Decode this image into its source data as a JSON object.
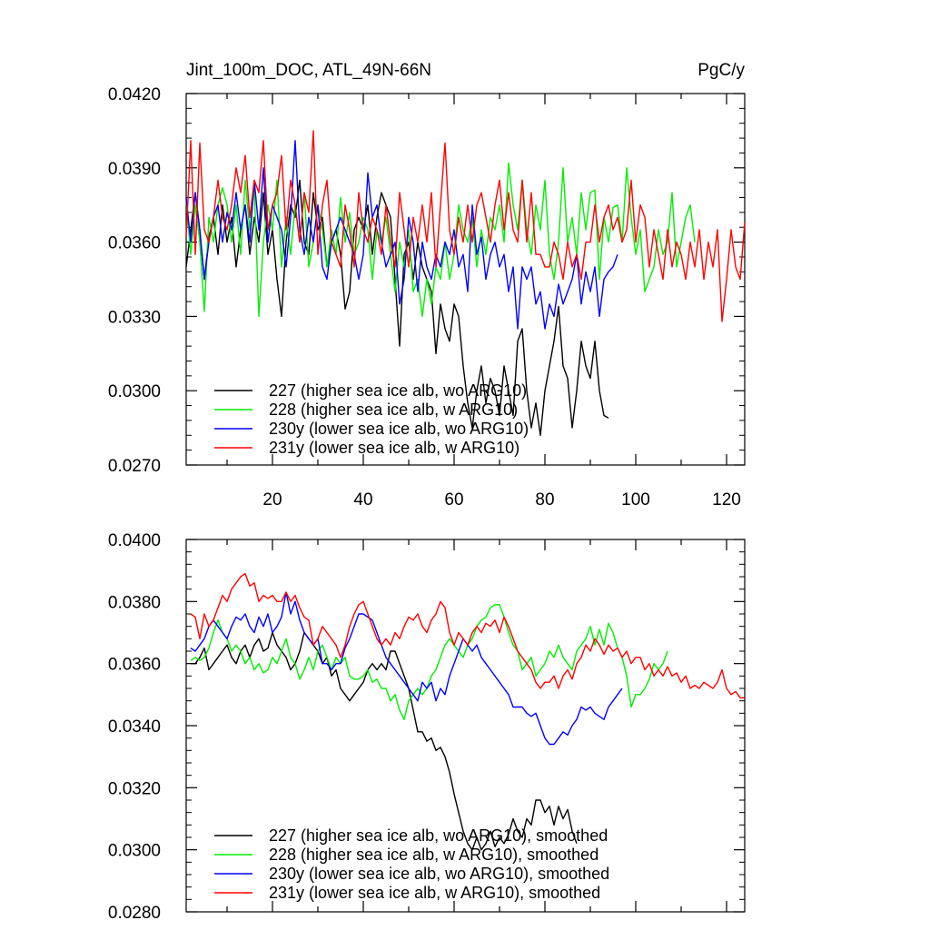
{
  "colors": {
    "s227": "#000000",
    "s228": "#00ee00",
    "s230y": "#0000ff",
    "s231y": "#ff0000"
  },
  "chart_data": [
    {
      "type": "line",
      "title": "Jint_100m_DOC, ATL_49N-66N",
      "units": "PgC/y",
      "xlabel": "",
      "ylabel": "",
      "xlim": [
        1,
        124
      ],
      "ylim": [
        0.027,
        0.042
      ],
      "y_ticks": [
        "0.0270",
        "0.0300",
        "0.0330",
        "0.0360",
        "0.0390",
        "0.0420"
      ],
      "x_ticks": [
        "20",
        "40",
        "60",
        "80",
        "100",
        "120"
      ],
      "legend_position": "bottom-left",
      "series": [
        {
          "name": "227 (higher sea ice alb, wo ARG10)",
          "color_key": "s227",
          "x_start": 1,
          "values": [
            0.035,
            0.0365,
            0.038,
            0.0365,
            0.0345,
            0.0362,
            0.037,
            0.0355,
            0.0375,
            0.036,
            0.037,
            0.035,
            0.0365,
            0.0375,
            0.0355,
            0.037,
            0.036,
            0.038,
            0.0355,
            0.0365,
            0.0345,
            0.033,
            0.036,
            0.0375,
            0.037,
            0.0385,
            0.036,
            0.0355,
            0.038,
            0.0365,
            0.037,
            0.035,
            0.036,
            0.0365,
            0.0355,
            0.0333,
            0.034,
            0.0365,
            0.037,
            0.0365,
            0.0375,
            0.0355,
            0.037,
            0.038,
            0.0375,
            0.037,
            0.0345,
            0.0318,
            0.0355,
            0.036,
            0.0345,
            0.036,
            0.035,
            0.0345,
            0.034,
            0.0315,
            0.0335,
            0.0325,
            0.032,
            0.0335,
            0.033,
            0.031,
            0.0295,
            0.0285,
            0.03,
            0.031,
            0.0295,
            0.0305,
            0.03,
            0.029,
            0.031,
            0.03,
            0.029,
            0.032,
            0.0325,
            0.03,
            0.0285,
            0.0295,
            0.0282,
            0.03,
            0.031,
            0.032,
            0.0334,
            0.031,
            0.0305,
            0.0285,
            0.03,
            0.032,
            0.031,
            0.0305,
            0.032,
            0.03,
            0.029,
            0.0289
          ]
        },
        {
          "name": "228 (higher sea ice alb, w ARG10)",
          "color_key": "s228",
          "x_start": 1,
          "values": [
            0.0377,
            0.0355,
            0.0375,
            0.036,
            0.0332,
            0.037,
            0.036,
            0.0375,
            0.0382,
            0.0375,
            0.036,
            0.0375,
            0.0355,
            0.0385,
            0.0365,
            0.0382,
            0.033,
            0.036,
            0.0375,
            0.0365,
            0.0385,
            0.035,
            0.037,
            0.0355,
            0.0375,
            0.036,
            0.038,
            0.035,
            0.036,
            0.0375,
            0.0365,
            0.035,
            0.0365,
            0.0355,
            0.0378,
            0.036,
            0.0372,
            0.0355,
            0.036,
            0.037,
            0.0365,
            0.0345,
            0.0365,
            0.036,
            0.037,
            0.0355,
            0.034,
            0.036,
            0.035,
            0.0365,
            0.034,
            0.0345,
            0.033,
            0.0345,
            0.0335,
            0.035,
            0.0345,
            0.036,
            0.0345,
            0.0355,
            0.0375,
            0.0365,
            0.036,
            0.037,
            0.035,
            0.0365,
            0.0355,
            0.037,
            0.0365,
            0.0375,
            0.036,
            0.0392,
            0.0375,
            0.0365,
            0.0385,
            0.0365,
            0.0355,
            0.0375,
            0.0365,
            0.0385,
            0.0355,
            0.0345,
            0.036,
            0.039,
            0.036,
            0.037,
            0.0355,
            0.038,
            0.0365,
            0.038,
            0.0381,
            0.0345,
            0.037,
            0.036,
            0.0374,
            0.0375,
            0.036,
            0.039,
            0.037,
            0.0355,
            0.0365,
            0.034,
            0.0345,
            0.035,
            0.0365,
            0.0355,
            0.036,
            0.038,
            0.035,
            0.036,
            0.037,
            0.0375,
            0.036
          ]
        },
        {
          "name": "230y (lower sea ice alb, wo ARG10)",
          "color_key": "s230y",
          "x_start": 1,
          "values": [
            0.0378,
            0.036,
            0.038,
            0.0365,
            0.0345,
            0.036,
            0.037,
            0.0375,
            0.036,
            0.0372,
            0.0365,
            0.038,
            0.0365,
            0.0375,
            0.036,
            0.0385,
            0.0365,
            0.039,
            0.036,
            0.0375,
            0.037,
            0.0365,
            0.035,
            0.037,
            0.0401,
            0.0365,
            0.0355,
            0.037,
            0.036,
            0.0375,
            0.035,
            0.0345,
            0.036,
            0.0365,
            0.037,
            0.0365,
            0.036,
            0.0355,
            0.0345,
            0.0355,
            0.0388,
            0.037,
            0.0375,
            0.036,
            0.035,
            0.0355,
            0.036,
            0.0335,
            0.0345,
            0.037,
            0.036,
            0.034,
            0.036,
            0.035,
            0.0345,
            0.0355,
            0.035,
            0.036,
            0.0355,
            0.0365,
            0.035,
            0.0355,
            0.034,
            0.0375,
            0.0355,
            0.0362,
            0.0345,
            0.0355,
            0.036,
            0.035,
            0.0355,
            0.034,
            0.035,
            0.0325,
            0.035,
            0.0345,
            0.035,
            0.0335,
            0.034,
            0.0325,
            0.0335,
            0.033,
            0.0343,
            0.0335,
            0.034,
            0.0345,
            0.0355,
            0.0335,
            0.0348,
            0.034,
            0.035,
            0.033,
            0.0345,
            0.0348,
            0.035,
            0.0355
          ]
        },
        {
          "name": "231y (lower sea ice alb, w ARG10)",
          "color_key": "s231y",
          "x_start": 1,
          "values": [
            0.0362,
            0.0401,
            0.0355,
            0.04,
            0.0365,
            0.036,
            0.037,
            0.0385,
            0.037,
            0.0365,
            0.0375,
            0.039,
            0.038,
            0.0395,
            0.037,
            0.0385,
            0.038,
            0.0401,
            0.0365,
            0.0375,
            0.038,
            0.0395,
            0.0365,
            0.0385,
            0.0375,
            0.036,
            0.038,
            0.0372,
            0.0405,
            0.0355,
            0.0375,
            0.0385,
            0.036,
            0.0355,
            0.035,
            0.0375,
            0.0365,
            0.035,
            0.038,
            0.0365,
            0.036,
            0.037,
            0.0365,
            0.0355,
            0.0375,
            0.036,
            0.035,
            0.038,
            0.0365,
            0.035,
            0.037,
            0.036,
            0.0375,
            0.036,
            0.038,
            0.035,
            0.0375,
            0.04,
            0.0365,
            0.0355,
            0.037,
            0.036,
            0.0375,
            0.036,
            0.0375,
            0.038,
            0.037,
            0.036,
            0.0375,
            0.0385,
            0.0365,
            0.038,
            0.0365,
            0.036,
            0.0385,
            0.036,
            0.038,
            0.0355,
            0.0355,
            0.035,
            0.035,
            0.036,
            0.0355,
            0.0345,
            0.036,
            0.035,
            0.0355,
            0.0345,
            0.036,
            0.036,
            0.0375,
            0.036,
            0.037,
            0.0375,
            0.0365,
            0.037,
            0.036,
            0.0365,
            0.0385,
            0.036,
            0.0375,
            0.037,
            0.035,
            0.0365,
            0.0355,
            0.0345,
            0.0365,
            0.035,
            0.036,
            0.0355,
            0.0345,
            0.036,
            0.035,
            0.0365,
            0.0345,
            0.036,
            0.035,
            0.0365,
            0.0328,
            0.0345,
            0.0365,
            0.035,
            0.0345,
            0.0368
          ]
        }
      ]
    },
    {
      "type": "line",
      "title": "",
      "xlabel": "",
      "ylabel": "",
      "xlim": [
        1,
        124
      ],
      "ylim": [
        0.028,
        0.04
      ],
      "y_ticks": [
        "0.0280",
        "0.0300",
        "0.0320",
        "0.0340",
        "0.0360",
        "0.0380",
        "0.0400"
      ],
      "legend_position": "bottom-left",
      "series": [
        {
          "name": "227 (higher sea ice alb, wo ARG10), smoothed",
          "color_key": "s227",
          "x_start": 2,
          "values": [
            0.036,
            0.036,
            0.0362,
            0.0365,
            0.0358,
            0.036,
            0.0362,
            0.0364,
            0.0366,
            0.0362,
            0.036,
            0.0364,
            0.0366,
            0.0362,
            0.0366,
            0.0368,
            0.0364,
            0.0365,
            0.037,
            0.0366,
            0.0364,
            0.0362,
            0.0358,
            0.036,
            0.0364,
            0.037,
            0.0368,
            0.0366,
            0.0364,
            0.036,
            0.0362,
            0.0356,
            0.0358,
            0.0352,
            0.035,
            0.0348,
            0.035,
            0.0352,
            0.0354,
            0.0358,
            0.036,
            0.0358,
            0.036,
            0.0358,
            0.0364,
            0.0364,
            0.036,
            0.0356,
            0.0352,
            0.0345,
            0.0338,
            0.0338,
            0.0335,
            0.0336,
            0.0332,
            0.0333,
            0.033,
            0.0325,
            0.0318,
            0.0312,
            0.0306,
            0.0302,
            0.03,
            0.0304,
            0.03,
            0.0302,
            0.0306,
            0.0301,
            0.0304,
            0.0302,
            0.0305,
            0.031,
            0.0306,
            0.0304,
            0.031,
            0.0308,
            0.0316,
            0.0316,
            0.0312,
            0.0314,
            0.0308,
            0.0314,
            0.031,
            0.0313,
            0.0306,
            0.0302
          ]
        },
        {
          "name": "228 (higher sea ice alb, w ARG10), smoothed",
          "color_key": "s228",
          "x_start": 2,
          "values": [
            0.0361,
            0.0362,
            0.0361,
            0.0362,
            0.0365,
            0.037,
            0.0374,
            0.037,
            0.0368,
            0.0364,
            0.0366,
            0.0364,
            0.036,
            0.0362,
            0.0358,
            0.036,
            0.0357,
            0.0358,
            0.0362,
            0.036,
            0.0364,
            0.0368,
            0.0362,
            0.036,
            0.0355,
            0.0358,
            0.0362,
            0.0358,
            0.0364,
            0.0366,
            0.0362,
            0.0358,
            0.0362,
            0.036,
            0.0362,
            0.0356,
            0.0355,
            0.0355,
            0.0356,
            0.0358,
            0.0354,
            0.0355,
            0.0352,
            0.0352,
            0.0348,
            0.035,
            0.0345,
            0.0342,
            0.0348,
            0.035,
            0.0352,
            0.035,
            0.0352,
            0.0356,
            0.0358,
            0.0362,
            0.0366,
            0.0368,
            0.0366,
            0.0364,
            0.0362,
            0.0366,
            0.0368,
            0.0372,
            0.0374,
            0.0375,
            0.0378,
            0.0379,
            0.0379,
            0.0375,
            0.037,
            0.0366,
            0.0364,
            0.0358,
            0.036,
            0.0362,
            0.0356,
            0.0358,
            0.036,
            0.0364,
            0.0362,
            0.0366,
            0.0362,
            0.036,
            0.0358,
            0.0364,
            0.0366,
            0.0368,
            0.0372,
            0.0366,
            0.0371,
            0.0366,
            0.0373,
            0.037,
            0.0365,
            0.0362,
            0.0356,
            0.0346,
            0.035,
            0.035,
            0.0352,
            0.0355,
            0.036,
            0.0358,
            0.036,
            0.0364
          ]
        },
        {
          "name": "230y (lower sea ice alb, wo ARG10), smoothed",
          "color_key": "s230y",
          "x_start": 2,
          "values": [
            0.0365,
            0.0364,
            0.0366,
            0.0368,
            0.0372,
            0.0374,
            0.0372,
            0.037,
            0.0368,
            0.0372,
            0.0375,
            0.0374,
            0.0376,
            0.0372,
            0.037,
            0.0375,
            0.0372,
            0.0376,
            0.037,
            0.0372,
            0.0375,
            0.0383,
            0.0376,
            0.038,
            0.0374,
            0.037,
            0.0368,
            0.0366,
            0.0368,
            0.036,
            0.036,
            0.0358,
            0.036,
            0.036,
            0.0365,
            0.0368,
            0.0372,
            0.0376,
            0.0376,
            0.0375,
            0.0374,
            0.037,
            0.0366,
            0.0362,
            0.036,
            0.0358,
            0.0356,
            0.0354,
            0.0352,
            0.035,
            0.0348,
            0.0354,
            0.0352,
            0.0354,
            0.0348,
            0.0352,
            0.035,
            0.0356,
            0.036,
            0.0364,
            0.0368,
            0.0366,
            0.0364,
            0.0366,
            0.0362,
            0.036,
            0.0358,
            0.0356,
            0.0354,
            0.0352,
            0.035,
            0.0346,
            0.0346,
            0.0346,
            0.0344,
            0.0343,
            0.0344,
            0.034,
            0.0336,
            0.0334,
            0.0334,
            0.0336,
            0.0338,
            0.0337,
            0.034,
            0.0342,
            0.0346,
            0.0345,
            0.0346,
            0.0344,
            0.0343,
            0.0342,
            0.0346,
            0.0348,
            0.035,
            0.0352
          ]
        },
        {
          "name": "231y (lower sea ice alb, w ARG10), smoothed",
          "color_key": "s231y",
          "x_start": 2,
          "values": [
            0.0376,
            0.0375,
            0.0368,
            0.0376,
            0.0372,
            0.0374,
            0.0378,
            0.0382,
            0.038,
            0.0384,
            0.0386,
            0.0388,
            0.0389,
            0.0385,
            0.0386,
            0.038,
            0.0382,
            0.0381,
            0.0382,
            0.038,
            0.038,
            0.0383,
            0.038,
            0.0382,
            0.0378,
            0.0375,
            0.0374,
            0.0366,
            0.0368,
            0.0372,
            0.037,
            0.0368,
            0.0366,
            0.0362,
            0.0366,
            0.0372,
            0.0376,
            0.0379,
            0.038,
            0.0376,
            0.0372,
            0.0368,
            0.0366,
            0.0368,
            0.0366,
            0.037,
            0.0368,
            0.0372,
            0.0375,
            0.0374,
            0.0376,
            0.0372,
            0.037,
            0.0374,
            0.0376,
            0.038,
            0.0378,
            0.037,
            0.0366,
            0.037,
            0.0368,
            0.0366,
            0.037,
            0.0372,
            0.037,
            0.0373,
            0.0372,
            0.0374,
            0.037,
            0.0375,
            0.0372,
            0.0368,
            0.0364,
            0.0362,
            0.036,
            0.0358,
            0.0354,
            0.0352,
            0.0354,
            0.0354,
            0.0356,
            0.0352,
            0.0356,
            0.0358,
            0.0355,
            0.036,
            0.0362,
            0.0366,
            0.0364,
            0.0368,
            0.0366,
            0.0363,
            0.0366,
            0.0364,
            0.0365,
            0.0362,
            0.0364,
            0.036,
            0.0362,
            0.0362,
            0.0358,
            0.036,
            0.0356,
            0.0358,
            0.0356,
            0.0359,
            0.0356,
            0.0357,
            0.0354,
            0.0356,
            0.0352,
            0.0353,
            0.0352,
            0.0354,
            0.0353,
            0.0352,
            0.0354,
            0.0358,
            0.0352,
            0.035,
            0.0351,
            0.0349,
            0.0349
          ]
        }
      ]
    }
  ]
}
